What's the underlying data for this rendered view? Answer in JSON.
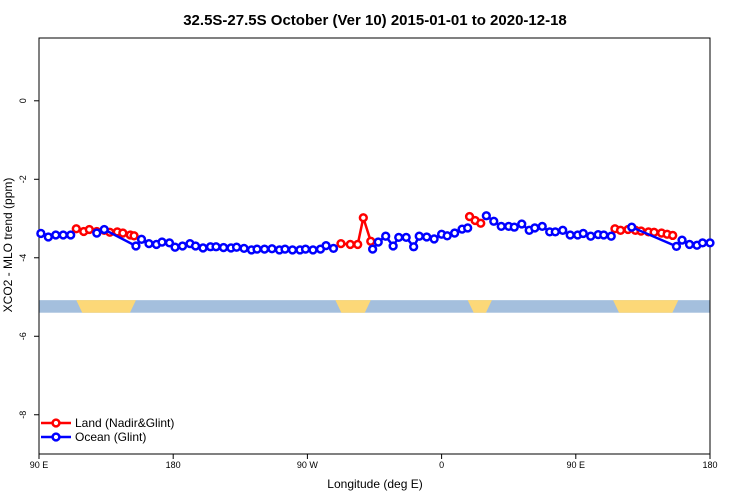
{
  "chart_data": {
    "type": "line",
    "title": "32.5S-27.5S October (Ver 10)   2015-01-01 to 2020-12-18",
    "xlabel": "Longitude (deg E)",
    "ylabel": "XCO2 - MLO trend (ppm)",
    "xlim": [
      90,
      450
    ],
    "ylim": [
      -9.0,
      1.6
    ],
    "x_ticks": [
      {
        "value": 90,
        "label": "90 E"
      },
      {
        "value": 162,
        "label": "180"
      },
      {
        "value": 234,
        "label": "90 W"
      },
      {
        "value": 306,
        "label": "0"
      },
      {
        "value": 378,
        "label": "90 E"
      },
      {
        "value": 450,
        "label": "180"
      }
    ],
    "y_ticks": [
      {
        "value": 0,
        "label": "0"
      },
      {
        "value": -2,
        "label": "-2"
      },
      {
        "value": -4,
        "label": "-4"
      },
      {
        "value": -6,
        "label": "-6"
      },
      {
        "value": -8,
        "label": "-8"
      }
    ],
    "series": [
      {
        "name": "Land (Nadir&Glint)",
        "color": "#ff0000",
        "segments": [
          [
            [
              110,
              -3.26
            ],
            [
              114,
              -3.33
            ],
            [
              117,
              -3.28
            ],
            [
              121,
              -3.33
            ],
            [
              125,
              -3.3
            ],
            [
              128,
              -3.35
            ],
            [
              132,
              -3.34
            ],
            [
              135,
              -3.37
            ],
            [
              139,
              -3.42
            ],
            [
              141,
              -3.44
            ]
          ],
          [
            [
              252,
              -3.64
            ],
            [
              257,
              -3.66
            ],
            [
              261,
              -3.66
            ],
            [
              264,
              -2.98
            ],
            [
              268,
              -3.58
            ]
          ],
          [
            [
              321,
              -2.95
            ],
            [
              324,
              -3.05
            ],
            [
              327,
              -3.12
            ]
          ],
          [
            [
              399,
              -3.26
            ],
            [
              402,
              -3.3
            ],
            [
              406,
              -3.28
            ],
            [
              410,
              -3.3
            ],
            [
              413,
              -3.32
            ],
            [
              417,
              -3.34
            ],
            [
              420,
              -3.35
            ],
            [
              424,
              -3.37
            ],
            [
              427,
              -3.4
            ],
            [
              430,
              -3.43
            ]
          ]
        ]
      },
      {
        "name": "Ocean (Glint)",
        "color": "#0000ff",
        "segments": [
          [
            [
              91,
              -3.38
            ],
            [
              95,
              -3.47
            ],
            [
              99,
              -3.42
            ],
            [
              103,
              -3.42
            ],
            [
              107,
              -3.42
            ]
          ],
          [
            [
              121,
              -3.37
            ],
            [
              125,
              -3.28
            ],
            [
              142,
              -3.7
            ],
            [
              145,
              -3.53
            ],
            [
              149,
              -3.64
            ],
            [
              153,
              -3.66
            ],
            [
              156,
              -3.6
            ],
            [
              160,
              -3.62
            ],
            [
              163,
              -3.73
            ],
            [
              167,
              -3.7
            ],
            [
              171,
              -3.64
            ],
            [
              174,
              -3.7
            ],
            [
              178,
              -3.75
            ],
            [
              182,
              -3.72
            ],
            [
              185,
              -3.72
            ],
            [
              189,
              -3.74
            ],
            [
              193,
              -3.75
            ],
            [
              196,
              -3.73
            ],
            [
              200,
              -3.76
            ],
            [
              204,
              -3.8
            ],
            [
              207,
              -3.78
            ],
            [
              211,
              -3.78
            ],
            [
              215,
              -3.77
            ],
            [
              219,
              -3.8
            ],
            [
              222,
              -3.78
            ],
            [
              226,
              -3.8
            ],
            [
              230,
              -3.8
            ],
            [
              233,
              -3.78
            ],
            [
              237,
              -3.8
            ],
            [
              241,
              -3.78
            ],
            [
              244,
              -3.69
            ],
            [
              248,
              -3.76
            ]
          ],
          [
            [
              269,
              -3.78
            ],
            [
              272,
              -3.6
            ],
            [
              276,
              -3.45
            ],
            [
              280,
              -3.7
            ],
            [
              283,
              -3.48
            ],
            [
              287,
              -3.48
            ],
            [
              291,
              -3.72
            ],
            [
              294,
              -3.45
            ],
            [
              298,
              -3.47
            ],
            [
              302,
              -3.52
            ],
            [
              306,
              -3.4
            ],
            [
              309,
              -3.44
            ],
            [
              313,
              -3.37
            ],
            [
              317,
              -3.27
            ],
            [
              320,
              -3.24
            ]
          ],
          [
            [
              330,
              -2.93
            ],
            [
              334,
              -3.07
            ],
            [
              338,
              -3.2
            ],
            [
              342,
              -3.2
            ],
            [
              345,
              -3.22
            ],
            [
              349,
              -3.14
            ],
            [
              353,
              -3.3
            ],
            [
              356,
              -3.24
            ],
            [
              360,
              -3.2
            ],
            [
              364,
              -3.34
            ],
            [
              367,
              -3.34
            ],
            [
              371,
              -3.3
            ],
            [
              375,
              -3.42
            ],
            [
              379,
              -3.42
            ],
            [
              382,
              -3.38
            ],
            [
              386,
              -3.45
            ],
            [
              390,
              -3.41
            ],
            [
              393,
              -3.42
            ],
            [
              397,
              -3.45
            ]
          ],
          [
            [
              408,
              -3.22
            ],
            [
              432,
              -3.71
            ],
            [
              435,
              -3.55
            ],
            [
              439,
              -3.66
            ],
            [
              443,
              -3.68
            ],
            [
              446,
              -3.62
            ],
            [
              450,
              -3.62
            ]
          ]
        ]
      }
    ],
    "band": {
      "y_top": -5.08,
      "y_bottom": -5.4,
      "ocean_color": "#a4bfdd",
      "land_color": "#fcd878",
      "land_ranges": [
        [
          110,
          142
        ],
        [
          249,
          268
        ],
        [
          320,
          333
        ],
        [
          398,
          433
        ]
      ]
    },
    "legend": {
      "position": "bottom-left",
      "entries": [
        {
          "label": "Land (Nadir&Glint)",
          "color": "#ff0000"
        },
        {
          "label": "Ocean (Glint)",
          "color": "#0000ff"
        }
      ]
    },
    "grid": false
  }
}
